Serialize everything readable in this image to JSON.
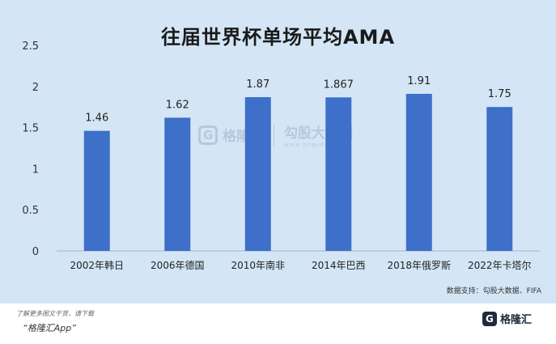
{
  "chart_data": {
    "type": "bar",
    "title": "往届世界杯单场平均AMA",
    "categories": [
      "2002年韩日",
      "2006年德国",
      "2010年南非",
      "2014年巴西",
      "2018年俄罗斯",
      "2022年卡塔尔"
    ],
    "values": [
      1.46,
      1.62,
      1.87,
      1.867,
      1.91,
      1.75
    ],
    "value_labels": [
      "1.46",
      "1.62",
      "1.87",
      "1.867",
      "1.91",
      "1.75"
    ],
    "ylim": [
      0,
      2.5
    ],
    "yticks": [
      0,
      0.5,
      1,
      1.5,
      2,
      2.5
    ],
    "ytick_labels": [
      "0",
      "0.5",
      "1",
      "1.5",
      "2",
      "2.5"
    ],
    "xlabel": "",
    "ylabel": "",
    "grid": false,
    "bar_color": "#3e6fc9",
    "background_color": "#d4e6f6"
  },
  "source_text": "数据支持：勾股大数据、FIFA",
  "watermark": {
    "logo_char": "G",
    "brand": "格隆汇",
    "right_text": "勾股大数据",
    "url": "www.gogudata.com"
  },
  "footer": {
    "note": "了解更多图文干货，请下载",
    "app": "“格隆汇App”",
    "logo_char": "G",
    "logo_name": "格隆汇"
  }
}
